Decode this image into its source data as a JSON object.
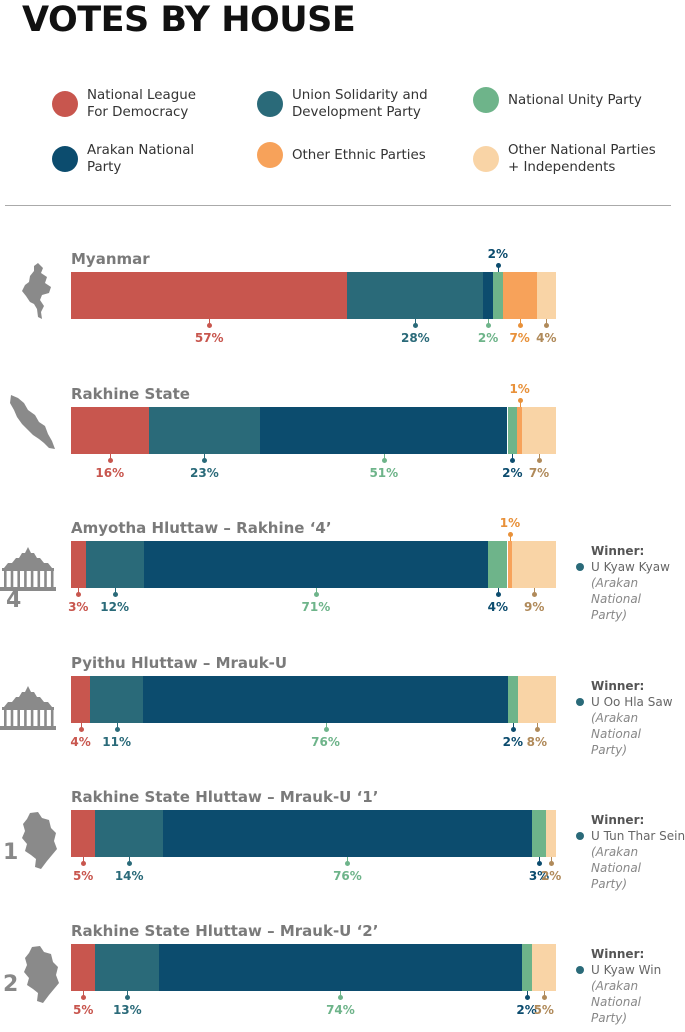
{
  "title": "VOTES BY HOUSE",
  "legend": [
    {
      "label": "National League\nFor Democracy",
      "color": "#c8564e"
    },
    {
      "label": "Union Solidarity and\nDevelopment Party",
      "color": "#2a6a79"
    },
    {
      "label": "National Unity Party",
      "color": "#6eb48a"
    },
    {
      "label": "Arakan National\nParty",
      "color": "#0c4c6e"
    },
    {
      "label": "Other Ethnic Parties",
      "color": "#f7a25a"
    },
    {
      "label": "Other National Parties\n+ Independents",
      "color": "#f9d4a6"
    }
  ],
  "label_colors": [
    "#c8564e",
    "#2a6a79",
    "#6eb48a",
    "#0c4c6e",
    "#e8913a",
    "#b08a5a"
  ],
  "icons": [
    "myanmar-map-icon",
    "rakhine-map-icon",
    "parliament-building-icon",
    "parliament-building-icon",
    "constituency-map-icon",
    "constituency-map-icon"
  ],
  "chart_data": {
    "type": "bar",
    "orientation": "horizontal-stacked-100",
    "series_order": [
      "National League For Democracy",
      "Union Solidarity and Development Party",
      "Arakan National Party",
      "National Unity Party",
      "Other Ethnic Parties",
      "Other National Parties + Independents"
    ],
    "bars": [
      {
        "title": "Myanmar",
        "number": "",
        "values": [
          57,
          28,
          2,
          2,
          7,
          4
        ],
        "labels": [
          "57%",
          "28%",
          "2%",
          "2%",
          "7%",
          "4%"
        ],
        "winner": null
      },
      {
        "title": "Rakhine State",
        "number": "",
        "values": [
          16,
          23,
          51,
          2,
          1,
          7
        ],
        "labels": [
          "16%",
          "23%",
          "51%",
          "2%",
          "1%",
          "7%"
        ],
        "winner": null
      },
      {
        "title": "Amyotha Hluttaw – Rakhine ‘4’",
        "number": "4",
        "values": [
          3,
          12,
          71,
          4,
          1,
          9
        ],
        "labels": [
          "3%",
          "12%",
          "71%",
          "4%",
          "1%",
          "9%"
        ],
        "winner": {
          "label": "Winner:",
          "name": "U Kyaw Kyaw",
          "party": "(Arakan National\nParty)"
        }
      },
      {
        "title": "Pyithu Hluttaw – Mrauk-U",
        "number": "",
        "values": [
          4,
          11,
          76,
          2,
          0,
          8
        ],
        "labels": [
          "4%",
          "11%",
          "76%",
          "2%",
          "",
          "8%"
        ],
        "winner": {
          "label": "Winner:",
          "name": "U Oo Hla Saw",
          "party": "(Arakan National\nParty)"
        }
      },
      {
        "title": "Rakhine State Hluttaw – Mrauk-U ‘1’",
        "number": "1",
        "values": [
          5,
          14,
          76,
          3,
          0,
          2
        ],
        "labels": [
          "5%",
          "14%",
          "76%",
          "3%",
          "",
          "2%"
        ],
        "winner": {
          "label": "Winner:",
          "name": "U Tun Thar Sein",
          "party": "(Arakan National\nParty)"
        }
      },
      {
        "title": "Rakhine State Hluttaw – Mrauk-U ‘2’",
        "number": "2",
        "values": [
          5,
          13,
          74,
          2,
          0,
          5
        ],
        "labels": [
          "5%",
          "13%",
          "74%",
          "2%",
          "",
          "5%"
        ],
        "winner": {
          "label": "Winner:",
          "name": "U Kyaw Win",
          "party": "(Arakan National\nParty)"
        }
      }
    ]
  }
}
